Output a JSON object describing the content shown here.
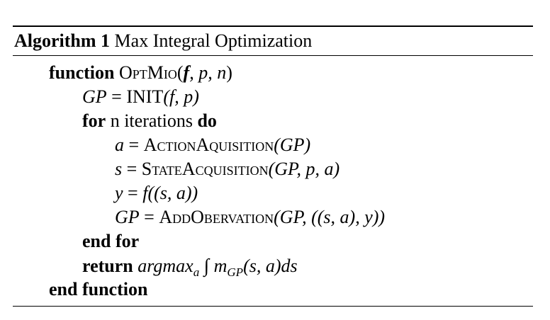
{
  "caption": {
    "label": "Algorithm 1",
    "title": "Max Integral Optimization"
  },
  "lines": {
    "l1": {
      "kw": "function",
      "proc": "OptMio",
      "open": "(",
      "f": "f",
      "rest": ", p, n",
      "close": ")"
    },
    "l2": {
      "lhs": "GP",
      "eq": " = ",
      "fn": "INIT",
      "args": "(f, p)"
    },
    "l3": {
      "kw_for": "for",
      "text": " n iterations ",
      "kw_do": "do"
    },
    "l4": {
      "lhs": "a",
      "eq": " = ",
      "fn": "ActionAquisition",
      "args": "(GP)"
    },
    "l5": {
      "lhs": "s",
      "eq": " = ",
      "fn": "StateAcquisition",
      "args": "(GP, p, a)"
    },
    "l6": {
      "lhs": "y",
      "eq": " = ",
      "rhs": "f((s, a))"
    },
    "l7": {
      "lhs": "GP",
      "eq": " = ",
      "fn": "AddObervation",
      "args": "(GP, ((s, a), y))"
    },
    "l8": {
      "kw": "end for"
    },
    "l9": {
      "kw": "return",
      "arg": "argmax",
      "sub_a": "a",
      "integral": "∫",
      "m": "m",
      "sub_gp": "GP",
      "tail": "(s, a)ds"
    },
    "l10": {
      "kw": "end function"
    }
  }
}
